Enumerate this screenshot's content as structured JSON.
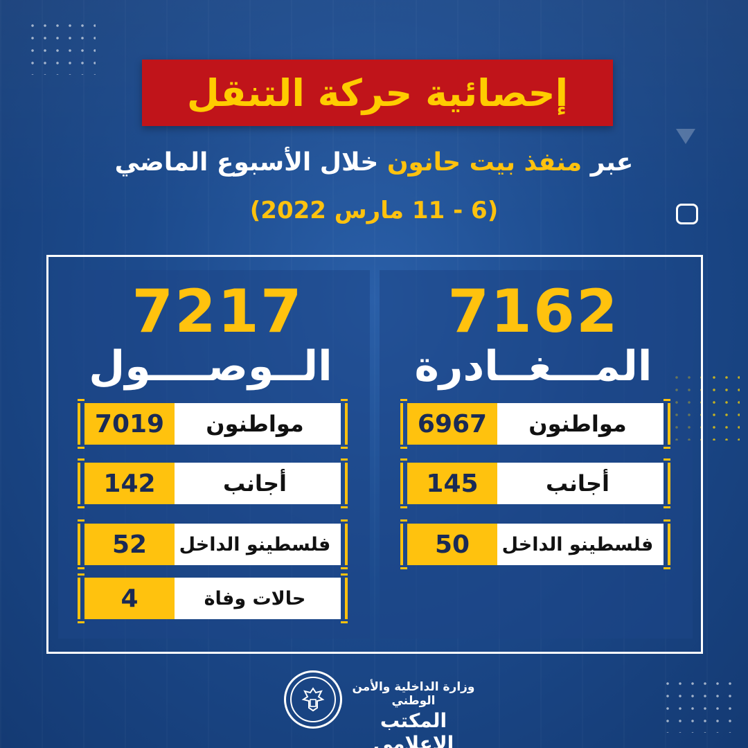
{
  "header": {
    "title": "إحصائية حركة التنقل",
    "subtitle_prefix": "عبر ",
    "subtitle_highlight": "منفذ بيت حانون",
    "subtitle_suffix": " خلال الأسبوع الماضي",
    "date_range": "(6 - 11 مارس 2022)"
  },
  "departure": {
    "total": "7162",
    "label": "المـــغــادرة",
    "rows": [
      {
        "label": "مواطنون",
        "value": "6967"
      },
      {
        "label": "أجانب",
        "value": "145"
      },
      {
        "label": "فلسطينو الداخل",
        "value": "50"
      }
    ]
  },
  "arrival": {
    "total": "7217",
    "label": "الــوصــــول",
    "rows": [
      {
        "label": "مواطنون",
        "value": "7019"
      },
      {
        "label": "أجانب",
        "value": "142"
      },
      {
        "label": "فلسطينو الداخل",
        "value": "52"
      },
      {
        "label": "حالات وفاة",
        "value": "4"
      }
    ]
  },
  "footer": {
    "line1": "وزارة الداخلية والأمن الوطني",
    "line2": "المكتب الإعلامي"
  },
  "colors": {
    "accent": "#ffc20e",
    "title_bg": "#c0141a",
    "background": "#1c4a8c"
  },
  "icons": {
    "seal": "eagle-seal-icon"
  }
}
